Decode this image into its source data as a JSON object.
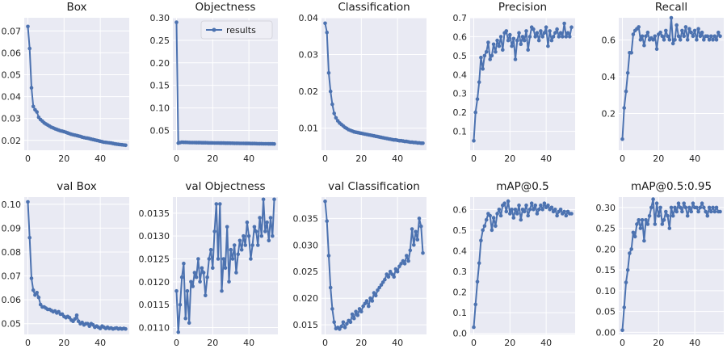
{
  "style": {
    "panel_bg": "#e9eaf3",
    "grid": "#ffffff",
    "line": "#4c72b0"
  },
  "legend": {
    "label": "results"
  },
  "chart_data": [
    {
      "type": "line",
      "title": "Box",
      "xlim": [
        -2,
        56
      ],
      "ylim": [
        0.0155,
        0.076
      ],
      "xticks": [
        0,
        20,
        40
      ],
      "yticks": [
        0.02,
        0.03,
        0.04,
        0.05,
        0.06,
        0.07
      ],
      "yticklabels": [
        "0.02",
        "0.03",
        "0.04",
        "0.05",
        "0.06",
        "0.07"
      ],
      "series": [
        {
          "values": [
            0.072,
            0.062,
            0.044,
            0.0355,
            0.034,
            0.033,
            0.0305,
            0.0295,
            0.0288,
            0.028,
            0.0275,
            0.027,
            0.0265,
            0.026,
            0.0257,
            0.0253,
            0.025,
            0.0247,
            0.0244,
            0.0242,
            0.024,
            0.0237,
            0.0234,
            0.0231,
            0.0228,
            0.0226,
            0.0224,
            0.0222,
            0.022,
            0.0218,
            0.0215,
            0.0213,
            0.0211,
            0.021,
            0.0208,
            0.0206,
            0.0204,
            0.0202,
            0.02,
            0.0198,
            0.0196,
            0.0194,
            0.0192,
            0.0191,
            0.019,
            0.0189,
            0.0188,
            0.0186,
            0.0184,
            0.0183,
            0.0182,
            0.0181,
            0.018,
            0.0179,
            0.0178
          ]
        }
      ]
    },
    {
      "type": "line",
      "title": "Objectness",
      "xlim": [
        -2,
        56
      ],
      "ylim": [
        0.006,
        0.3
      ],
      "xticks": [
        0,
        20,
        40
      ],
      "yticks": [
        0.05,
        0.1,
        0.15,
        0.2,
        0.25,
        0.3
      ],
      "yticklabels": [
        "0.05",
        "0.10",
        "0.15",
        "0.20",
        "0.25",
        "0.30"
      ],
      "legend": true,
      "series": [
        {
          "name": "results",
          "values": [
            0.29,
            0.022,
            0.023,
            0.024,
            0.0235,
            0.0235,
            0.0233,
            0.0232,
            0.0231,
            0.023,
            0.023,
            0.0229,
            0.0228,
            0.0228,
            0.0227,
            0.0226,
            0.0226,
            0.0225,
            0.0224,
            0.0224,
            0.0223,
            0.0222,
            0.0222,
            0.0221,
            0.022,
            0.022,
            0.0219,
            0.0218,
            0.0218,
            0.0217,
            0.0216,
            0.0216,
            0.0215,
            0.0214,
            0.0214,
            0.0213,
            0.0212,
            0.0212,
            0.0211,
            0.021,
            0.021,
            0.0209,
            0.0208,
            0.0208,
            0.0207,
            0.0206,
            0.0206,
            0.0205,
            0.0204,
            0.0204,
            0.0203,
            0.0202,
            0.0202,
            0.0201,
            0.02
          ]
        }
      ]
    },
    {
      "type": "line",
      "title": "Classification",
      "xlim": [
        -2,
        56
      ],
      "ylim": [
        0.004,
        0.04
      ],
      "xticks": [
        0,
        20,
        40
      ],
      "yticks": [
        0.01,
        0.02,
        0.03,
        0.04
      ],
      "yticklabels": [
        "0.01",
        "0.02",
        "0.03",
        "0.04"
      ],
      "series": [
        {
          "values": [
            0.0385,
            0.036,
            0.025,
            0.02,
            0.0165,
            0.014,
            0.0128,
            0.012,
            0.0114,
            0.011,
            0.0106,
            0.0102,
            0.0099,
            0.0096,
            0.0094,
            0.0092,
            0.009,
            0.0089,
            0.0088,
            0.0087,
            0.0086,
            0.0085,
            0.0084,
            0.0083,
            0.0082,
            0.0081,
            0.008,
            0.0079,
            0.0078,
            0.0077,
            0.0076,
            0.0075,
            0.0074,
            0.0073,
            0.0072,
            0.0071,
            0.007,
            0.0069,
            0.0068,
            0.0068,
            0.0067,
            0.0066,
            0.0066,
            0.0065,
            0.0064,
            0.0064,
            0.0063,
            0.0062,
            0.0062,
            0.0061,
            0.0061,
            0.006,
            0.006,
            0.0059,
            0.0059
          ]
        }
      ]
    },
    {
      "type": "line",
      "title": "Precision",
      "xlim": [
        -2,
        56
      ],
      "ylim": [
        0.0,
        0.7
      ],
      "xticks": [
        0,
        20,
        40
      ],
      "yticks": [
        0.1,
        0.2,
        0.3,
        0.4,
        0.5,
        0.6,
        0.7
      ],
      "yticklabels": [
        "0.1",
        "0.2",
        "0.3",
        "0.4",
        "0.5",
        "0.6",
        "0.7"
      ],
      "series": [
        {
          "values": [
            0.05,
            0.2,
            0.27,
            0.36,
            0.49,
            0.43,
            0.5,
            0.52,
            0.57,
            0.48,
            0.5,
            0.56,
            0.52,
            0.58,
            0.55,
            0.6,
            0.53,
            0.62,
            0.63,
            0.58,
            0.61,
            0.55,
            0.59,
            0.48,
            0.58,
            0.62,
            0.56,
            0.6,
            0.58,
            0.63,
            0.53,
            0.6,
            0.65,
            0.64,
            0.6,
            0.62,
            0.58,
            0.63,
            0.6,
            0.62,
            0.65,
            0.55,
            0.63,
            0.58,
            0.6,
            0.62,
            0.64,
            0.6,
            0.62,
            0.6,
            0.67,
            0.6,
            0.62,
            0.6,
            0.65
          ]
        }
      ]
    },
    {
      "type": "line",
      "title": "Recall",
      "xlim": [
        -2,
        56
      ],
      "ylim": [
        0.0,
        0.72
      ],
      "xticks": [
        0,
        20,
        40
      ],
      "yticks": [
        0.2,
        0.4,
        0.6
      ],
      "yticklabels": [
        "0.2",
        "0.4",
        "0.6"
      ],
      "series": [
        {
          "values": [
            0.06,
            0.23,
            0.32,
            0.42,
            0.53,
            0.53,
            0.63,
            0.65,
            0.66,
            0.67,
            0.6,
            0.62,
            0.57,
            0.62,
            0.64,
            0.6,
            0.61,
            0.6,
            0.62,
            0.55,
            0.63,
            0.64,
            0.62,
            0.6,
            0.65,
            0.62,
            0.6,
            0.72,
            0.58,
            0.6,
            0.68,
            0.62,
            0.6,
            0.65,
            0.62,
            0.67,
            0.6,
            0.66,
            0.64,
            0.62,
            0.65,
            0.6,
            0.66,
            0.62,
            0.64,
            0.6,
            0.62,
            0.62,
            0.6,
            0.62,
            0.6,
            0.62,
            0.6,
            0.64,
            0.62
          ]
        }
      ]
    },
    {
      "type": "line",
      "title": "val Box",
      "xlim": [
        -2,
        56
      ],
      "ylim": [
        0.0455,
        0.103
      ],
      "xticks": [
        0,
        20,
        40
      ],
      "yticks": [
        0.05,
        0.06,
        0.07,
        0.08,
        0.09,
        0.1
      ],
      "yticklabels": [
        "0.05",
        "0.06",
        "0.07",
        "0.08",
        "0.09",
        "0.10"
      ],
      "series": [
        {
          "values": [
            0.101,
            0.086,
            0.069,
            0.064,
            0.062,
            0.063,
            0.061,
            0.058,
            0.057,
            0.057,
            0.0565,
            0.056,
            0.056,
            0.0555,
            0.055,
            0.0553,
            0.0545,
            0.055,
            0.054,
            0.054,
            0.053,
            0.0525,
            0.053,
            0.0525,
            0.0515,
            0.051,
            0.052,
            0.0535,
            0.051,
            0.05,
            0.0505,
            0.0495,
            0.05,
            0.05,
            0.049,
            0.05,
            0.0495,
            0.0485,
            0.049,
            0.0485,
            0.048,
            0.049,
            0.0485,
            0.048,
            0.0485,
            0.048,
            0.0482,
            0.0478,
            0.048,
            0.0482,
            0.0478,
            0.048,
            0.0478,
            0.048,
            0.0478
          ]
        }
      ]
    },
    {
      "type": "line",
      "title": "val Objectness",
      "xlim": [
        -2,
        56
      ],
      "ylim": [
        0.01085,
        0.01385
      ],
      "xticks": [
        0,
        20,
        40
      ],
      "yticks": [
        0.011,
        0.0115,
        0.012,
        0.0125,
        0.013,
        0.0135
      ],
      "yticklabels": [
        "0.0110",
        "0.0115",
        "0.0120",
        "0.0125",
        "0.0130",
        "0.0135"
      ],
      "series": [
        {
          "values": [
            0.0118,
            0.0109,
            0.0115,
            0.0121,
            0.0124,
            0.0112,
            0.0118,
            0.0111,
            0.012,
            0.0119,
            0.0122,
            0.0121,
            0.0125,
            0.012,
            0.0123,
            0.0122,
            0.0117,
            0.0121,
            0.0125,
            0.0127,
            0.0123,
            0.0131,
            0.0137,
            0.0125,
            0.0137,
            0.0118,
            0.0125,
            0.0123,
            0.0132,
            0.012,
            0.0127,
            0.0125,
            0.0128,
            0.0122,
            0.0126,
            0.0129,
            0.0127,
            0.013,
            0.0128,
            0.0133,
            0.013,
            0.0125,
            0.0128,
            0.0132,
            0.0131,
            0.0128,
            0.0134,
            0.013,
            0.0138,
            0.0131,
            0.0133,
            0.0129,
            0.0134,
            0.013,
            0.0138
          ]
        }
      ]
    },
    {
      "type": "line",
      "title": "val Classification",
      "xlim": [
        -2,
        56
      ],
      "ylim": [
        0.0132,
        0.039
      ],
      "xticks": [
        0,
        20,
        40
      ],
      "yticks": [
        0.015,
        0.02,
        0.025,
        0.03,
        0.035
      ],
      "yticklabels": [
        "0.015",
        "0.020",
        "0.025",
        "0.030",
        "0.035"
      ],
      "series": [
        {
          "values": [
            0.0382,
            0.0345,
            0.028,
            0.022,
            0.018,
            0.0155,
            0.0143,
            0.0145,
            0.0142,
            0.0147,
            0.0155,
            0.0145,
            0.0152,
            0.0158,
            0.0155,
            0.017,
            0.0162,
            0.0175,
            0.0168,
            0.018,
            0.0175,
            0.0185,
            0.019,
            0.0195,
            0.0185,
            0.02,
            0.0195,
            0.021,
            0.0205,
            0.0215,
            0.022,
            0.0225,
            0.023,
            0.0235,
            0.0245,
            0.024,
            0.025,
            0.0245,
            0.024,
            0.0255,
            0.025,
            0.026,
            0.0265,
            0.027,
            0.0265,
            0.028,
            0.027,
            0.029,
            0.033,
            0.03,
            0.0325,
            0.031,
            0.035,
            0.0335,
            0.0285
          ]
        }
      ]
    },
    {
      "type": "line",
      "title": "mAP@0.5",
      "xlim": [
        -2,
        56
      ],
      "ylim": [
        -0.005,
        0.66
      ],
      "xticks": [
        0,
        20,
        40
      ],
      "yticks": [
        0.0,
        0.1,
        0.2,
        0.3,
        0.4,
        0.5,
        0.6
      ],
      "yticklabels": [
        "0.0",
        "0.1",
        "0.2",
        "0.3",
        "0.4",
        "0.5",
        "0.6"
      ],
      "series": [
        {
          "values": [
            0.03,
            0.14,
            0.25,
            0.34,
            0.45,
            0.5,
            0.52,
            0.55,
            0.58,
            0.57,
            0.5,
            0.56,
            0.52,
            0.58,
            0.6,
            0.57,
            0.62,
            0.63,
            0.59,
            0.64,
            0.58,
            0.6,
            0.56,
            0.6,
            0.58,
            0.62,
            0.55,
            0.6,
            0.59,
            0.62,
            0.57,
            0.6,
            0.63,
            0.6,
            0.62,
            0.58,
            0.6,
            0.62,
            0.6,
            0.63,
            0.61,
            0.62,
            0.6,
            0.61,
            0.59,
            0.6,
            0.57,
            0.59,
            0.6,
            0.58,
            0.59,
            0.57,
            0.59,
            0.58,
            0.58
          ]
        }
      ]
    },
    {
      "type": "line",
      "title": "mAP@0.5:0.95",
      "xlim": [
        -2,
        56
      ],
      "ylim": [
        -0.005,
        0.325
      ],
      "xticks": [
        0,
        20,
        40
      ],
      "yticks": [
        0.0,
        0.05,
        0.1,
        0.15,
        0.2,
        0.25,
        0.3
      ],
      "yticklabels": [
        "0.00",
        "0.05",
        "0.10",
        "0.15",
        "0.20",
        "0.25",
        "0.30"
      ],
      "series": [
        {
          "values": [
            0.005,
            0.06,
            0.12,
            0.15,
            0.19,
            0.2,
            0.24,
            0.23,
            0.26,
            0.27,
            0.25,
            0.27,
            0.22,
            0.27,
            0.26,
            0.28,
            0.3,
            0.32,
            0.26,
            0.31,
            0.28,
            0.3,
            0.26,
            0.27,
            0.29,
            0.28,
            0.25,
            0.3,
            0.28,
            0.3,
            0.29,
            0.31,
            0.3,
            0.29,
            0.31,
            0.3,
            0.28,
            0.3,
            0.29,
            0.31,
            0.3,
            0.3,
            0.29,
            0.3,
            0.31,
            0.3,
            0.29,
            0.28,
            0.3,
            0.29,
            0.3,
            0.29,
            0.3,
            0.29,
            0.29
          ]
        }
      ]
    }
  ]
}
